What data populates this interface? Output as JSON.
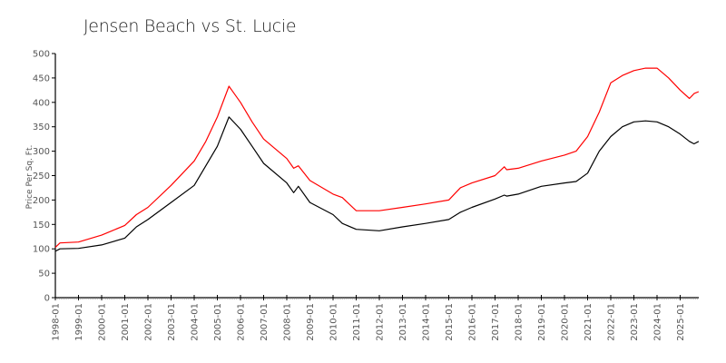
{
  "chart_data": {
    "type": "line",
    "title": "Jensen Beach vs St. Lucie",
    "xlabel": "",
    "ylabel": "Price Per Sq. Ft.",
    "ylim": [
      0,
      500
    ],
    "yticks": [
      0,
      50,
      100,
      150,
      200,
      250,
      300,
      350,
      400,
      450,
      500
    ],
    "xticks": [
      "1998-01",
      "1999-01",
      "2000-01",
      "2001-01",
      "2002-01",
      "2003-01",
      "2004-01",
      "2005-01",
      "2006-01",
      "2007-01",
      "2008-01",
      "2009-01",
      "2010-01",
      "2011-01",
      "2012-01",
      "2013-01",
      "2014-01",
      "2015-01",
      "2016-01",
      "2017-01",
      "2018-01",
      "2019-01",
      "2020-01",
      "2021-01",
      "2022-01",
      "2023-01",
      "2024-01",
      "2025-01"
    ],
    "grid": false,
    "legend": "none",
    "x": [
      1998.0,
      1998.2,
      1999.0,
      2000.0,
      2001.0,
      2001.5,
      2002.0,
      2003.0,
      2004.0,
      2004.5,
      2005.0,
      2005.5,
      2006.0,
      2006.5,
      2007.0,
      2008.0,
      2008.3,
      2008.5,
      2009.0,
      2010.0,
      2010.4,
      2011.0,
      2012.0,
      2013.0,
      2014.0,
      2015.0,
      2015.5,
      2016.0,
      2017.0,
      2017.4,
      2017.5,
      2018.0,
      2019.0,
      2020.0,
      2020.5,
      2021.0,
      2021.5,
      2022.0,
      2022.5,
      2023.0,
      2023.5,
      2024.0,
      2024.5,
      2025.0,
      2025.4,
      2025.6,
      2025.8
    ],
    "series": [
      {
        "name": "Jensen Beach",
        "color": "#ff0000",
        "values": [
          103,
          112,
          114,
          128,
          148,
          170,
          185,
          230,
          280,
          320,
          370,
          433,
          400,
          360,
          325,
          285,
          265,
          270,
          240,
          212,
          205,
          178,
          178,
          185,
          192,
          200,
          225,
          235,
          250,
          268,
          262,
          265,
          280,
          292,
          300,
          330,
          380,
          440,
          455,
          465,
          470,
          470,
          450,
          425,
          408,
          418,
          422
        ]
      },
      {
        "name": "St. Lucie",
        "color": "#000000",
        "values": [
          95,
          100,
          101,
          108,
          122,
          145,
          160,
          195,
          230,
          270,
          310,
          370,
          345,
          310,
          275,
          235,
          215,
          228,
          195,
          170,
          152,
          140,
          137,
          145,
          152,
          160,
          175,
          185,
          202,
          210,
          208,
          212,
          228,
          235,
          238,
          255,
          300,
          330,
          350,
          360,
          362,
          360,
          350,
          335,
          320,
          315,
          320
        ]
      }
    ]
  }
}
